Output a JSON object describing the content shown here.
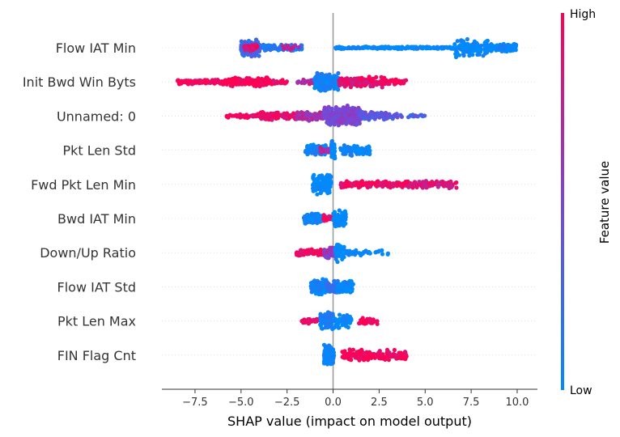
{
  "chart_data": {
    "type": "scatter",
    "subtype": "shap-beeswarm",
    "xlabel": "SHAP value (impact on model output)",
    "xlim": [
      -9.3,
      11.1
    ],
    "xticks": [
      -7.5,
      -5.0,
      -2.5,
      0.0,
      2.5,
      5.0,
      7.5,
      10.0
    ],
    "xtick_labels": [
      "−7.5",
      "−5.0",
      "−2.5",
      "0.0",
      "2.5",
      "5.0",
      "7.5",
      "10.0"
    ],
    "colorbar": {
      "label": "Feature value",
      "high_label": "High",
      "low_label": "Low",
      "low_color": "#008bfb",
      "high_color": "#ff0052"
    },
    "features": [
      {
        "name": "Flow IAT Min",
        "segments": [
          {
            "from": -5.0,
            "to": -4.0,
            "color_value": 0.25,
            "n": 170,
            "width": 0.9
          },
          {
            "from": -4.9,
            "to": -4.1,
            "color_value": 0.9,
            "n": 30,
            "width": 0.4
          },
          {
            "from": -3.9,
            "to": -1.7,
            "color_value": 0.12,
            "n": 90,
            "width": 0.3
          },
          {
            "from": -2.8,
            "to": -1.8,
            "color_value": 0.7,
            "n": 15,
            "width": 0.3
          },
          {
            "from": 0.1,
            "to": 6.6,
            "color_value": 0.0,
            "n": 160,
            "width": 0.12
          },
          {
            "from": 6.6,
            "to": 8.4,
            "color_value": 0.0,
            "n": 120,
            "width": 0.9
          },
          {
            "from": 8.4,
            "to": 10.0,
            "color_value": 0.0,
            "n": 100,
            "width": 0.4
          }
        ]
      },
      {
        "name": "Init Bwd Win Byts",
        "segments": [
          {
            "from": -8.5,
            "to": -6.0,
            "color_value": 1.0,
            "n": 120,
            "width": 0.25
          },
          {
            "from": -6.0,
            "to": -3.5,
            "color_value": 1.0,
            "n": 200,
            "width": 0.45
          },
          {
            "from": -3.5,
            "to": -2.5,
            "color_value": 0.95,
            "n": 35,
            "width": 0.25
          },
          {
            "from": -2.0,
            "to": -0.6,
            "color_value": 0.7,
            "n": 30,
            "width": 0.25
          },
          {
            "from": -1.0,
            "to": 0.3,
            "color_value": 0.05,
            "n": 170,
            "width": 0.95
          },
          {
            "from": 0.3,
            "to": 2.8,
            "color_value": 0.9,
            "n": 150,
            "width": 0.55
          },
          {
            "from": 2.8,
            "to": 4.0,
            "color_value": 0.95,
            "n": 55,
            "width": 0.25
          }
        ]
      },
      {
        "name": "Unnamed: 0",
        "segments": [
          {
            "from": -5.8,
            "to": -4.0,
            "color_value": 0.95,
            "n": 45,
            "width": 0.2
          },
          {
            "from": -4.0,
            "to": -2.0,
            "color_value": 0.9,
            "n": 110,
            "width": 0.45
          },
          {
            "from": -2.0,
            "to": -0.5,
            "color_value": 0.65,
            "n": 100,
            "width": 0.5
          },
          {
            "from": -0.5,
            "to": 1.5,
            "color_value": 0.5,
            "n": 250,
            "width": 1.0
          },
          {
            "from": 1.5,
            "to": 3.5,
            "color_value": 0.35,
            "n": 80,
            "width": 0.4
          },
          {
            "from": 3.5,
            "to": 5.0,
            "color_value": 0.3,
            "n": 16,
            "width": 0.15
          }
        ]
      },
      {
        "name": "Pkt Len Std",
        "segments": [
          {
            "from": -1.5,
            "to": -0.4,
            "color_value": 0.05,
            "n": 100,
            "width": 0.6
          },
          {
            "from": -0.7,
            "to": -0.2,
            "color_value": 0.75,
            "n": 18,
            "width": 0.3
          },
          {
            "from": -0.1,
            "to": 0.1,
            "color_value": 0.0,
            "n": 30,
            "width": 1.0
          },
          {
            "from": 0.4,
            "to": 2.0,
            "color_value": 0.02,
            "n": 80,
            "width": 0.55
          }
        ]
      },
      {
        "name": "Fwd Pkt Len Min",
        "segments": [
          {
            "from": -1.1,
            "to": -0.1,
            "color_value": 0.0,
            "n": 160,
            "width": 1.0
          },
          {
            "from": 0.4,
            "to": 4.0,
            "color_value": 0.95,
            "n": 130,
            "width": 0.35
          },
          {
            "from": 4.0,
            "to": 6.7,
            "color_value": 0.85,
            "n": 110,
            "width": 0.4
          }
        ]
      },
      {
        "name": "Bwd IAT Min",
        "segments": [
          {
            "from": -1.6,
            "to": -0.6,
            "color_value": 0.05,
            "n": 100,
            "width": 0.55
          },
          {
            "from": -0.6,
            "to": 0.0,
            "color_value": 0.9,
            "n": 30,
            "width": 0.35
          },
          {
            "from": 0.0,
            "to": 0.7,
            "color_value": 0.0,
            "n": 70,
            "width": 0.9
          }
        ]
      },
      {
        "name": "Down/Up Ratio",
        "segments": [
          {
            "from": -2.0,
            "to": -0.4,
            "color_value": 0.95,
            "n": 90,
            "width": 0.35
          },
          {
            "from": -0.5,
            "to": 0.2,
            "color_value": 0.6,
            "n": 60,
            "width": 0.7
          },
          {
            "from": 0.1,
            "to": 0.6,
            "color_value": 0.0,
            "n": 50,
            "width": 1.0
          },
          {
            "from": 0.6,
            "to": 3.0,
            "color_value": 0.0,
            "n": 40,
            "width": 0.3
          }
        ]
      },
      {
        "name": "Flow IAT Std",
        "segments": [
          {
            "from": -1.2,
            "to": -0.3,
            "color_value": 0.05,
            "n": 110,
            "width": 0.8
          },
          {
            "from": -0.3,
            "to": 0.3,
            "color_value": 0.2,
            "n": 40,
            "width": 0.6
          },
          {
            "from": 0.2,
            "to": 1.1,
            "color_value": 0.0,
            "n": 80,
            "width": 0.6
          }
        ]
      },
      {
        "name": "Pkt Len Max",
        "segments": [
          {
            "from": -1.7,
            "to": -0.6,
            "color_value": 0.95,
            "n": 45,
            "width": 0.25
          },
          {
            "from": -0.7,
            "to": 0.0,
            "color_value": 0.1,
            "n": 110,
            "width": 0.9
          },
          {
            "from": 0.0,
            "to": 1.0,
            "color_value": 0.0,
            "n": 70,
            "width": 0.7
          },
          {
            "from": 1.4,
            "to": 2.4,
            "color_value": 0.95,
            "n": 40,
            "width": 0.3
          }
        ]
      },
      {
        "name": "FIN Flag Cnt",
        "segments": [
          {
            "from": -0.5,
            "to": 0.05,
            "color_value": 0.0,
            "n": 130,
            "width": 1.0
          },
          {
            "from": 0.5,
            "to": 4.0,
            "color_value": 0.98,
            "n": 150,
            "width": 0.55
          }
        ]
      }
    ]
  }
}
